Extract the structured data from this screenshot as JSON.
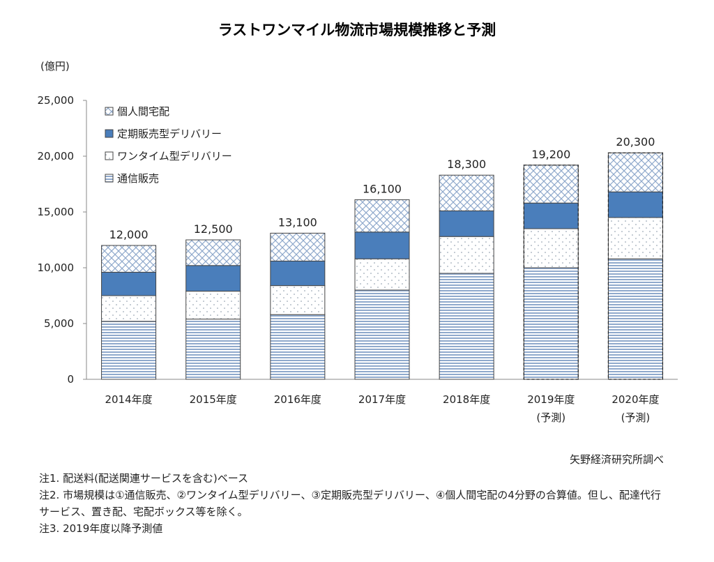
{
  "chart_data": {
    "type": "bar",
    "stacked": true,
    "title": "ラストワンマイル物流市場規模推移と予測",
    "ylabel": "(億円)",
    "ylim": [
      0,
      25000
    ],
    "yticks": [
      "0",
      "5,000",
      "10,000",
      "15,000",
      "20,000",
      "25,000"
    ],
    "categories": [
      {
        "line1": "2014年度",
        "line2": ""
      },
      {
        "line1": "2015年度",
        "line2": ""
      },
      {
        "line1": "2016年度",
        "line2": ""
      },
      {
        "line1": "2017年度",
        "line2": ""
      },
      {
        "line1": "2018年度",
        "line2": ""
      },
      {
        "line1": "2019年度",
        "line2": "(予測)"
      },
      {
        "line1": "2020年度",
        "line2": "(予測)"
      }
    ],
    "forecast": [
      false,
      false,
      false,
      false,
      false,
      true,
      true
    ],
    "totals": [
      "12,000",
      "12,500",
      "13,100",
      "16,100",
      "18,300",
      "19,200",
      "20,300"
    ],
    "series": [
      {
        "name": "通信販売",
        "pattern": "hlines",
        "values": [
          5200,
          5400,
          5800,
          8000,
          9500,
          10000,
          10800
        ]
      },
      {
        "name": "ワンタイム型デリバリー",
        "pattern": "dots",
        "values": [
          2300,
          2500,
          2600,
          2800,
          3300,
          3500,
          3700
        ]
      },
      {
        "name": "定期販売型デリバリー",
        "pattern": "solid",
        "values": [
          2100,
          2300,
          2200,
          2400,
          2300,
          2300,
          2300
        ]
      },
      {
        "name": "個人間宅配",
        "pattern": "cross",
        "values": [
          2400,
          2300,
          2500,
          2900,
          3200,
          3400,
          3500
        ]
      }
    ],
    "legend_order": [
      3,
      2,
      1,
      0
    ],
    "colors": {
      "solid": "#4a7ebb",
      "hlines": "#8fa9cc",
      "cross": "#8fa9cc",
      "dots": "#7f8fa0"
    }
  },
  "source": "矢野経済研究所調べ",
  "notes": [
    "注1. 配送料(配送関連サービスを含む)ベース",
    "注2. 市場規模は①通信販売、②ワンタイム型デリバリー、③定期販売型デリバリー、④個人間宅配の4分野の合算値。但し、配達代行",
    "サービス、置き配、宅配ボックス等を除く。",
    "注3. 2019年度以降予測値"
  ]
}
